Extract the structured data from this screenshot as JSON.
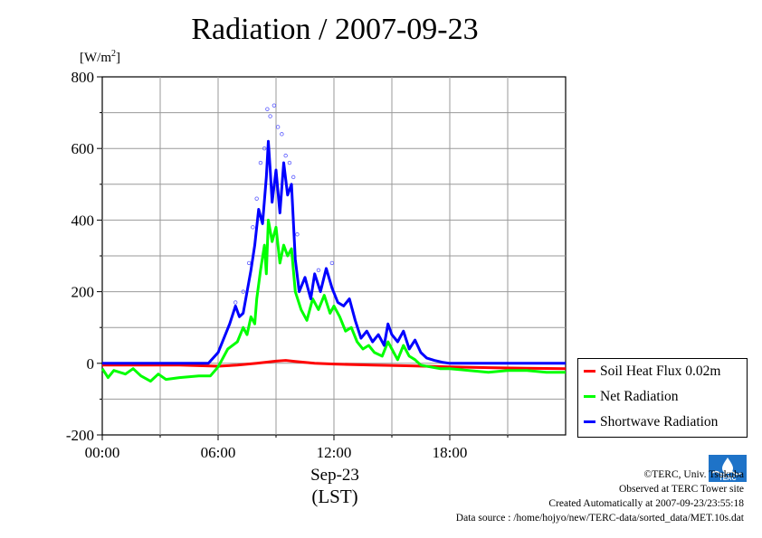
{
  "title": "Radiation / 2007-09-23",
  "unit_label": {
    "prefix": "[W/m",
    "exp": "2",
    "suffix": "]"
  },
  "date_label": "Sep-23",
  "tz_label": "(LST)",
  "legend": [
    {
      "name": "Soil Heat Flux 0.02m",
      "color": "#ff0000"
    },
    {
      "name": "Net Radiation",
      "color": "#00ff00"
    },
    {
      "name": "Shortwave Radiation",
      "color": "#0000ff"
    }
  ],
  "credits": {
    "copyright": "©TERC, Univ. Tsukuba",
    "observed": "Observed at TERC Tower site",
    "created": "Created Automatically at 2007-09-23/23:55:18",
    "source": "Data source : /home/hojyo/new/TERC-data/sorted_data/MET.10s.dat"
  },
  "logo_text": "TERC",
  "chart_data": {
    "type": "line",
    "title": "Radiation / 2007-09-23",
    "xlabel": "Sep-23 (LST)",
    "ylabel": "[W/m2]",
    "xlim": [
      0,
      24
    ],
    "ylim": [
      -200,
      800
    ],
    "xticks": [
      "00:00",
      "06:00",
      "12:00",
      "18:00"
    ],
    "xtick_values": [
      0,
      6,
      12,
      18
    ],
    "yticks": [
      -200,
      0,
      200,
      400,
      600,
      800
    ],
    "grid": true,
    "legend_position": "right",
    "series": [
      {
        "name": "Soil Heat Flux 0.02m",
        "color": "#ff0000",
        "x": [
          0,
          4,
          6,
          7,
          8,
          9,
          9.5,
          10,
          11,
          12,
          14,
          16,
          18,
          20,
          22,
          24
        ],
        "y": [
          -5,
          -5,
          -8,
          -5,
          0,
          6,
          8,
          5,
          0,
          -2,
          -5,
          -7,
          -10,
          -12,
          -14,
          -15
        ]
      },
      {
        "name": "Net Radiation",
        "color": "#00ff00",
        "x": [
          0,
          0.3,
          0.6,
          1.2,
          1.6,
          2.0,
          2.5,
          2.9,
          3.3,
          4.0,
          5.0,
          5.6,
          6.0,
          6.5,
          7.0,
          7.3,
          7.5,
          7.7,
          7.9,
          8.0,
          8.2,
          8.4,
          8.5,
          8.6,
          8.8,
          9.0,
          9.2,
          9.4,
          9.6,
          9.8,
          10.0,
          10.3,
          10.6,
          10.9,
          11.2,
          11.5,
          11.8,
          12.0,
          12.3,
          12.6,
          12.9,
          13.2,
          13.5,
          13.8,
          14.1,
          14.5,
          14.8,
          15.0,
          15.3,
          15.6,
          15.9,
          16.2,
          16.5,
          17.0,
          17.5,
          18.0,
          19.0,
          20.0,
          21.0,
          22.0,
          23.0,
          24.0
        ],
        "y": [
          -15,
          -40,
          -20,
          -30,
          -15,
          -35,
          -50,
          -30,
          -45,
          -40,
          -35,
          -35,
          -10,
          40,
          60,
          100,
          80,
          130,
          110,
          180,
          260,
          330,
          250,
          400,
          340,
          380,
          280,
          330,
          300,
          320,
          200,
          150,
          120,
          180,
          150,
          190,
          140,
          160,
          130,
          90,
          100,
          60,
          40,
          50,
          30,
          20,
          60,
          40,
          10,
          50,
          20,
          10,
          -5,
          -10,
          -15,
          -15,
          -20,
          -25,
          -20,
          -20,
          -25,
          -25
        ]
      },
      {
        "name": "Shortwave Radiation",
        "color": "#0000ff",
        "x": [
          0,
          2,
          4,
          5.5,
          6.0,
          6.3,
          6.6,
          6.9,
          7.1,
          7.3,
          7.5,
          7.7,
          7.9,
          8.1,
          8.3,
          8.5,
          8.6,
          8.7,
          8.8,
          9.0,
          9.2,
          9.4,
          9.6,
          9.8,
          10.0,
          10.2,
          10.5,
          10.8,
          11.0,
          11.3,
          11.6,
          11.9,
          12.2,
          12.5,
          12.8,
          13.1,
          13.4,
          13.7,
          14.0,
          14.3,
          14.6,
          14.8,
          15.0,
          15.3,
          15.6,
          15.9,
          16.2,
          16.5,
          16.8,
          17.2,
          17.6,
          18.0,
          20.0,
          22.0,
          24.0
        ],
        "y": [
          0,
          0,
          0,
          0,
          30,
          70,
          110,
          160,
          130,
          140,
          200,
          260,
          330,
          430,
          390,
          520,
          620,
          540,
          450,
          540,
          420,
          560,
          470,
          500,
          290,
          200,
          240,
          180,
          250,
          200,
          265,
          210,
          170,
          160,
          180,
          120,
          70,
          90,
          60,
          80,
          50,
          110,
          80,
          60,
          90,
          40,
          65,
          30,
          15,
          8,
          3,
          0,
          0,
          0,
          0
        ]
      }
    ],
    "scatter_peaks": [
      {
        "x": 8.55,
        "y": 710
      },
      {
        "x": 8.9,
        "y": 720
      },
      {
        "x": 8.7,
        "y": 690
      },
      {
        "x": 9.1,
        "y": 660
      },
      {
        "x": 9.3,
        "y": 640
      },
      {
        "x": 8.4,
        "y": 600
      },
      {
        "x": 9.5,
        "y": 580
      },
      {
        "x": 8.2,
        "y": 560
      },
      {
        "x": 9.7,
        "y": 560
      },
      {
        "x": 9.9,
        "y": 520
      },
      {
        "x": 8.0,
        "y": 460
      },
      {
        "x": 7.8,
        "y": 380
      },
      {
        "x": 7.6,
        "y": 280
      },
      {
        "x": 10.1,
        "y": 360
      },
      {
        "x": 7.3,
        "y": 200
      },
      {
        "x": 6.9,
        "y": 170
      },
      {
        "x": 11.2,
        "y": 260
      },
      {
        "x": 11.9,
        "y": 280
      }
    ]
  }
}
